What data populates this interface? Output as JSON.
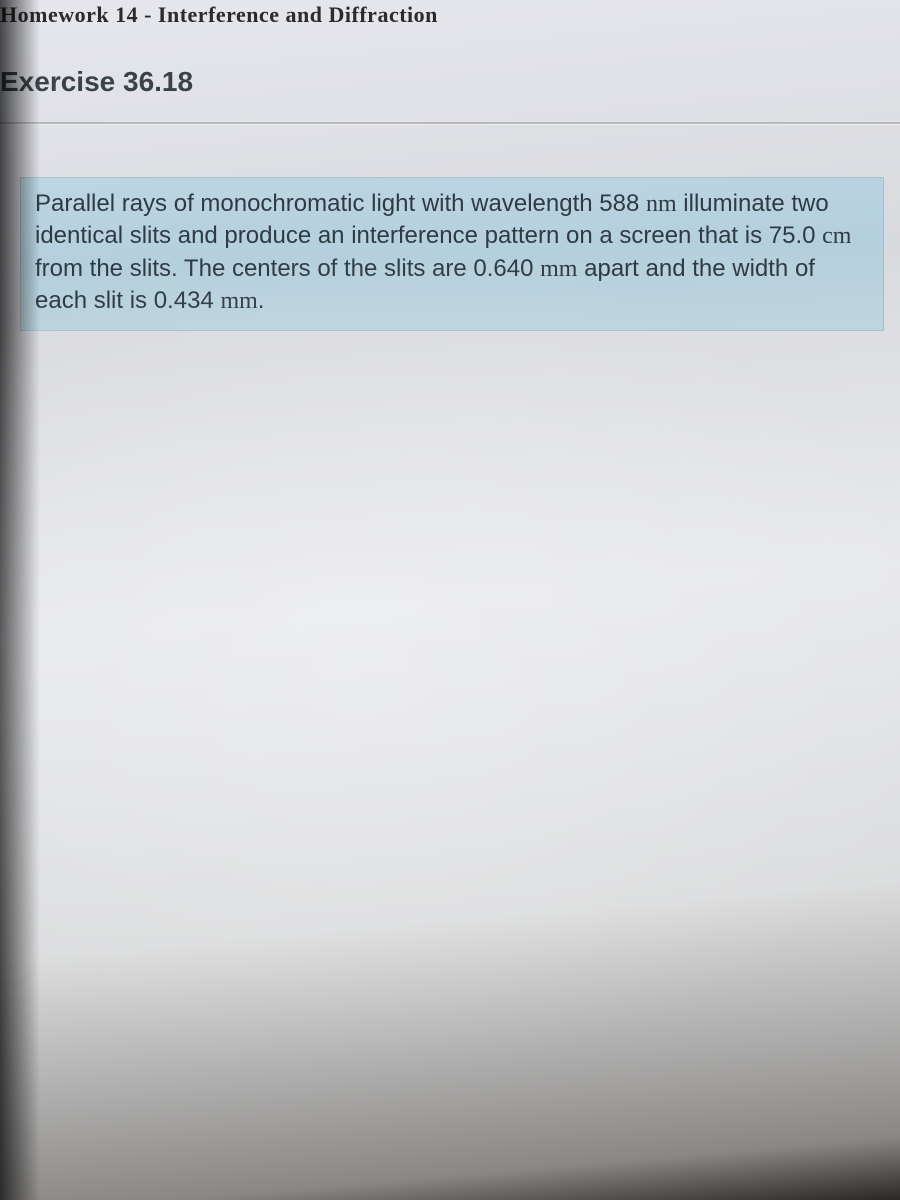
{
  "breadcrumb": "Homework 14 - Interference and Diffraction",
  "exercise_title": "Exercise 36.18",
  "problem": {
    "line1_a": "Parallel rays of monochromatic light with wavelength 588 ",
    "unit1": "nm",
    "line2_a": " illuminate two identical slits and produce an interference pattern on a screen that is 75.0 ",
    "unit2": "cm",
    "line2_b": " from the slits. The centers of the slits are 0.640 ",
    "unit3": "mm",
    "line3_a": " apart and the width of each slit is 0.434 ",
    "unit4": "mm",
    "line3_b": "."
  },
  "colors": {
    "highlight_bg": "#b8d4e0",
    "text_main": "#2e3b44",
    "title": "#3a4348"
  },
  "typography": {
    "title_fontsize": 28,
    "body_fontsize": 24,
    "breadcrumb_fontsize": 22
  }
}
